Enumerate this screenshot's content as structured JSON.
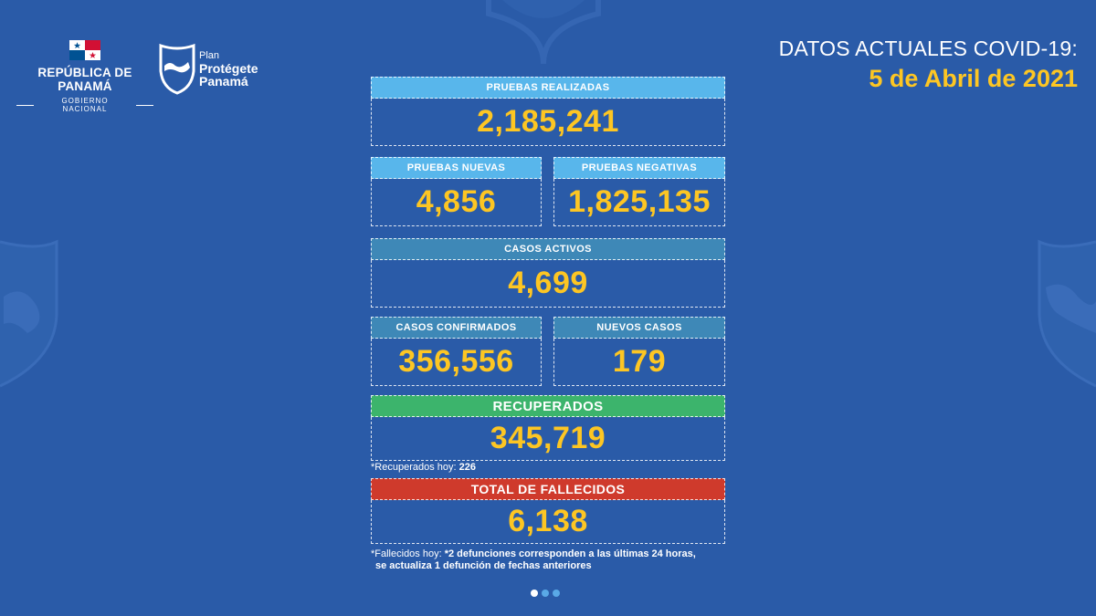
{
  "header": {
    "republic": "REPÚBLICA DE PANAMÁ",
    "government": "GOBIERNO NACIONAL",
    "plan_small": "Plan",
    "plan_line1": "Protégete",
    "plan_line2": "Panamá",
    "title": "DATOS ACTUALES COVID-19:",
    "date": "5 de Abril de 2021"
  },
  "stats": {
    "pruebas_realizadas": {
      "label": "PRUEBAS REALIZADAS",
      "value": "2,185,241"
    },
    "pruebas_nuevas": {
      "label": "PRUEBAS NUEVAS",
      "value": "4,856"
    },
    "pruebas_negativas": {
      "label": "PRUEBAS NEGATIVAS",
      "value": "1,825,135"
    },
    "casos_activos": {
      "label": "CASOS ACTIVOS",
      "value": "4,699"
    },
    "casos_confirmados": {
      "label": "CASOS CONFIRMADOS",
      "value": "356,556"
    },
    "nuevos_casos": {
      "label": "NUEVOS CASOS",
      "value": "179"
    },
    "recuperados": {
      "label": "RECUPERADOS",
      "value": "345,719"
    },
    "fallecidos": {
      "label": "TOTAL DE FALLECIDOS",
      "value": "6,138"
    }
  },
  "notes": {
    "recuperados_prefix": "*Recuperados hoy: ",
    "recuperados_value": "226",
    "fallecidos_prefix": "*Fallecidos hoy: ",
    "fallecidos_line1": "*2 defunciones corresponden a las últimas 24 horas,",
    "fallecidos_line2": "se actualiza 1 defunción de fechas anteriores"
  },
  "pagination": {
    "pages": 3,
    "active": 1
  },
  "colors": {
    "background": "#2a5ba8",
    "value": "#fdc623",
    "header_light": "#58b6eb",
    "header_teal": "#3e88b7",
    "header_green": "#3cb46c",
    "header_red": "#cf3a2c"
  }
}
